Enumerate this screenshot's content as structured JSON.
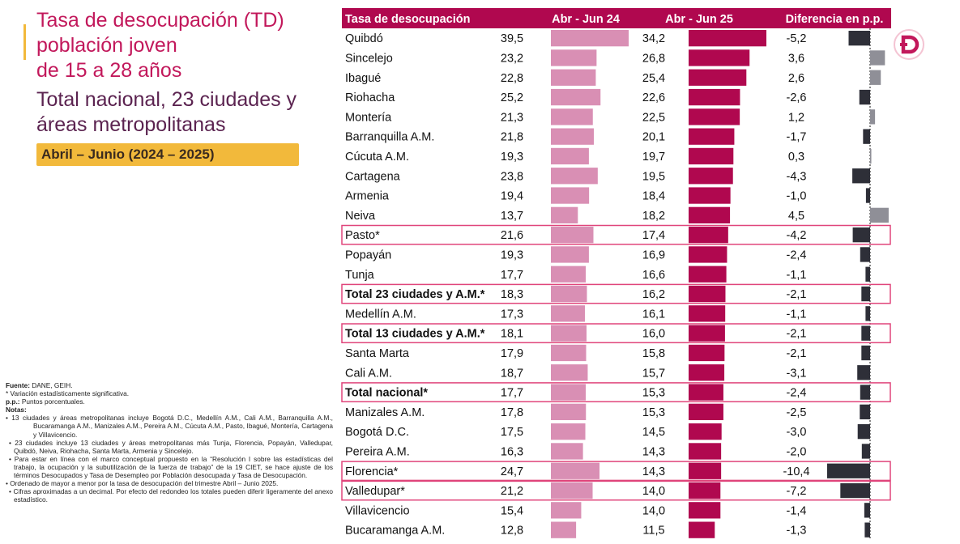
{
  "title": {
    "line1": "Tasa de desocupación (TD)",
    "line2": "población joven",
    "line3": "de 15 a 28 años",
    "line4": "Total nacional, 23 ciudades y",
    "line5": "áreas metropolitanas",
    "period": "Abril – Junio (2024 – 2025)"
  },
  "notes": {
    "source_label": "Fuente:",
    "source": " DANE, GEIH.",
    "star": "* Variación estadísticamente significativa.",
    "pp_label": "p.p.:",
    "pp": " Puntos porcentuales.",
    "notes_label": "Notas:",
    "n1": "• 13 ciudades y áreas metropolitanas incluye Bogotá D.C., Medellín A.M., Cali A.M., Barranquilla A.M., Bucaramanga A.M., Manizales A.M., Pereira A.M., Cúcuta A.M., Pasto, Ibagué, Montería, Cartagena y Villavicencio.",
    "n2": "• 23 ciudades incluye 13 ciudades y áreas metropolitanas más Tunja, Florencia, Popayán, Valledupar, Quibdó, Neiva, Riohacha, Santa Marta, Armenia y Sincelejo.",
    "n3": "• Para estar en línea con el marco conceptual propuesto en la “Resolución I sobre las estadísticas del trabajo, la ocupación y la subutilización de la fuerza de trabajo” de la 19 CIET, se hace ajuste de los términos Desocupados y Tasa de Desempleo por Población desocupada y Tasa de Desocupación.",
    "n4": "• Ordenado de mayor a menor por la tasa de desocupación del trimestre Abril – Junio 2025.",
    "n5": "• Cifras aproximadas a un decimal. Por efecto del redondeo los totales pueden diferir ligeramente del anexo estadístico."
  },
  "colors": {
    "accent": "#c2185b",
    "header_bg": "#b0084f",
    "bar_2024": "#d98fb4",
    "bar_2025": "#b0084f",
    "diff_negative": "#2e2f38",
    "diff_positive": "#8f8f97",
    "highlight_border": "#e0457b",
    "period_bg": "#f2b93b"
  },
  "chart_data": {
    "type": "bar",
    "headers": [
      "Tasa de desocupación",
      "Abr - Jun 24",
      "Abr - Jun 25",
      "Diferencia en p.p."
    ],
    "categories": [
      "Quibdó",
      "Sincelejo",
      "Ibagué",
      "Riohacha",
      "Montería",
      "Barranquilla A.M.",
      "Cúcuta A.M.",
      "Cartagena",
      "Armenia",
      "Neiva",
      "Pasto*",
      "Popayán",
      "Tunja",
      "Total 23 ciudades y A.M.*",
      "Medellín A.M.",
      "Total 13 ciudades y A.M.*",
      "Santa Marta",
      "Cali A.M.",
      "Total nacional*",
      "Manizales A.M.",
      "Bogotá D.C.",
      "Pereira A.M.",
      "Florencia*",
      "Valledupar*",
      "Villavicencio",
      "Bucaramanga A.M."
    ],
    "series": [
      {
        "name": "Abr - Jun 24",
        "values": [
          39.5,
          23.2,
          22.8,
          25.2,
          21.3,
          21.8,
          19.3,
          23.8,
          19.4,
          13.7,
          21.6,
          19.3,
          17.7,
          18.3,
          17.3,
          18.1,
          17.9,
          18.7,
          17.7,
          17.8,
          17.5,
          16.3,
          24.7,
          21.2,
          15.4,
          12.8
        ]
      },
      {
        "name": "Abr - Jun 25",
        "values": [
          34.2,
          26.8,
          25.4,
          22.6,
          22.5,
          20.1,
          19.7,
          19.5,
          18.4,
          18.2,
          17.4,
          16.9,
          16.6,
          16.2,
          16.1,
          16.0,
          15.8,
          15.7,
          15.3,
          15.3,
          14.5,
          14.3,
          14.3,
          14.0,
          14.0,
          11.5
        ]
      },
      {
        "name": "Diferencia en p.p.",
        "values": [
          -5.2,
          3.6,
          2.6,
          -2.6,
          1.2,
          -1.7,
          0.3,
          -4.3,
          -1.0,
          4.5,
          -4.2,
          -2.4,
          -1.1,
          -2.1,
          -1.1,
          -2.1,
          -2.1,
          -3.1,
          -2.4,
          -2.5,
          -3.0,
          -2.0,
          -10.4,
          -7.2,
          -1.4,
          -1.3
        ]
      }
    ],
    "labels_2024": [
      "39,5",
      "23,2",
      "22,8",
      "25,2",
      "21,3",
      "21,8",
      "19,3",
      "23,8",
      "19,4",
      "13,7",
      "21,6",
      "19,3",
      "17,7",
      "18,3",
      "17,3",
      "18,1",
      "17,9",
      "18,7",
      "17,7",
      "17,8",
      "17,5",
      "16,3",
      "24,7",
      "21,2",
      "15,4",
      "12,8"
    ],
    "labels_2025": [
      "34,2",
      "26,8",
      "25,4",
      "22,6",
      "22,5",
      "20,1",
      "19,7",
      "19,5",
      "18,4",
      "18,2",
      "17,4",
      "16,9",
      "16,6",
      "16,2",
      "16,1",
      "16,0",
      "15,8",
      "15,7",
      "15,3",
      "15,3",
      "14,5",
      "14,3",
      "14,3",
      "14,0",
      "14,0",
      "11,5"
    ],
    "labels_diff": [
      "-5,2",
      "3,6",
      "2,6",
      "-2,6",
      "1,2",
      "-1,7",
      "0,3",
      "-4,3",
      "-1,0",
      "4,5",
      "-4,2",
      "-2,4",
      "-1,1",
      "-2,1",
      "-1,1",
      "-2,1",
      "-2,1",
      "-3,1",
      "-2,4",
      "-2,5",
      "-3,0",
      "-2,0",
      "-10,4",
      "-7,2",
      "-1,4",
      "-1,3"
    ],
    "bold_rows": [
      13,
      15,
      18
    ],
    "highlighted_rows": [
      10,
      13,
      15,
      18,
      22,
      23
    ]
  }
}
